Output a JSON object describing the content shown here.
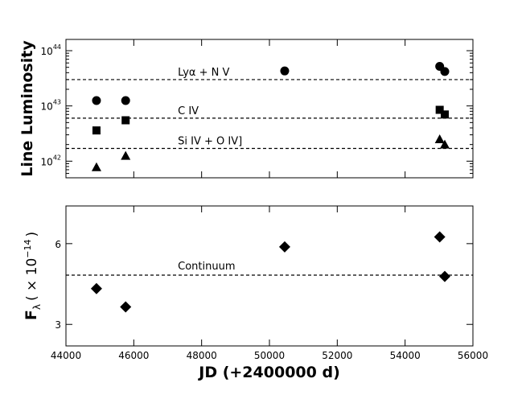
{
  "chart_data": [
    {
      "type": "scatter",
      "ylabel": "Line Luminosity",
      "yscale": "log",
      "ylim": [
        500000000000000000000000000000000000000000,
        160000000000000000000000000000000000000000000
      ],
      "xlim": [
        44000,
        56000
      ],
      "y_tick_labels": [
        {
          "value": 1e+42,
          "base": "10",
          "exp": "42"
        },
        {
          "value": 1e+43,
          "base": "10",
          "exp": "43"
        },
        {
          "value": 1e+44,
          "base": "10",
          "exp": "44"
        }
      ],
      "grid": false,
      "series": [
        {
          "name": "Lyα + N V",
          "marker": "circle",
          "reference_level": 3e+43,
          "x": [
            44900,
            45760,
            50450,
            55020,
            55170
          ],
          "y": [
            1.25e+43,
            1.25e+43,
            4.3e+43,
            5.2e+43,
            4.2e+43
          ]
        },
        {
          "name": "C IV",
          "marker": "square",
          "reference_level": 6e+42,
          "x": [
            44900,
            45760,
            55020,
            55170
          ],
          "y": [
            3.6e+42,
            5.5e+42,
            8.5e+42,
            7e+42
          ]
        },
        {
          "name": "Si IV + O IV]",
          "marker": "triangle",
          "reference_level": 1.7e+42,
          "x": [
            44900,
            45760,
            55020,
            55170
          ],
          "y": [
            7.8e+41,
            1.25e+42,
            2.5e+42,
            2e+42
          ]
        }
      ]
    },
    {
      "type": "scatter",
      "ylabel_main": "F",
      "ylabel_sub": "λ",
      "ylabel_paren": "( × 10",
      "ylabel_exp": "−14",
      "ylabel_close": ")",
      "xlabel": "JD (+2400000 d)",
      "xlim": [
        44000,
        56000
      ],
      "ylim": [
        2.2,
        7.4
      ],
      "x_ticks": [
        44000,
        46000,
        48000,
        50000,
        52000,
        54000,
        56000
      ],
      "x_tick_labels": [
        "44000",
        "46000",
        "48000",
        "50000",
        "52000",
        "54000",
        "56000"
      ],
      "y_ticks": [
        3,
        6
      ],
      "y_tick_labels": [
        "3",
        "6"
      ],
      "grid": false,
      "series": [
        {
          "name": "Continuum",
          "marker": "diamond",
          "reference_level": 4.83,
          "x": [
            44900,
            45760,
            50450,
            55020,
            55170
          ],
          "y": [
            4.33,
            3.65,
            5.88,
            6.25,
            4.78
          ]
        }
      ]
    }
  ]
}
